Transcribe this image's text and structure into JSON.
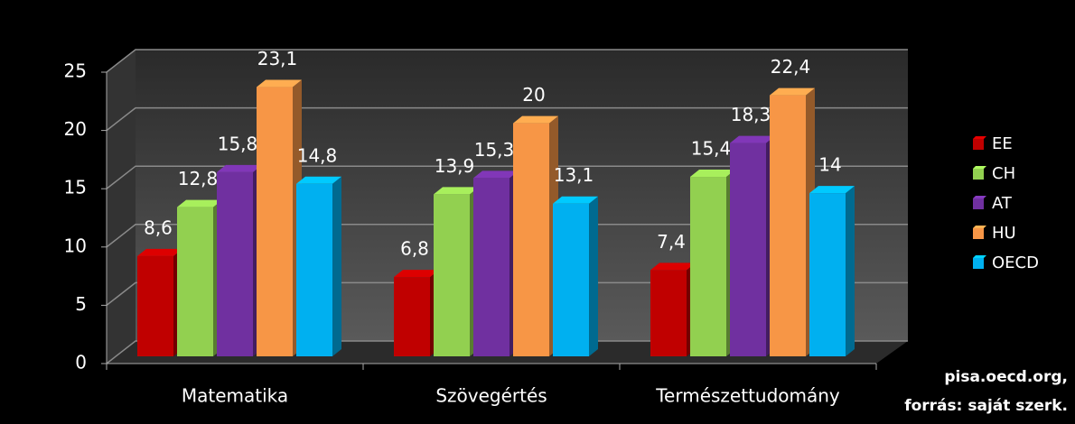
{
  "chart_data": {
    "type": "bar3d",
    "categories": [
      "Matematika",
      "Szövegértés",
      "Természettudomány"
    ],
    "series": [
      {
        "name": "EE",
        "color": "#c00000",
        "values": [
          8.6,
          6.8,
          7.4
        ],
        "value_labels": [
          "8,6",
          "6,8",
          "7,4"
        ]
      },
      {
        "name": "CH",
        "color": "#92d050",
        "values": [
          12.8,
          13.9,
          15.4
        ],
        "value_labels": [
          "12,8",
          "13,9",
          "15,4"
        ]
      },
      {
        "name": "AT",
        "color": "#7030a0",
        "values": [
          15.8,
          15.3,
          18.3
        ],
        "value_labels": [
          "15,8",
          "15,3",
          "18,3"
        ]
      },
      {
        "name": "HU",
        "color": "#f79646",
        "values": [
          23.1,
          20,
          22.4
        ],
        "value_labels": [
          "23,1",
          "20",
          "22,4"
        ]
      },
      {
        "name": "OECD",
        "color": "#00b0f0",
        "values": [
          14.8,
          13.1,
          14
        ],
        "value_labels": [
          "14,8",
          "13,1",
          "14"
        ]
      }
    ],
    "ylim": [
      0,
      25
    ],
    "yticks": [
      0,
      5,
      10,
      15,
      20,
      25
    ],
    "grid": true,
    "legend": "right",
    "annotations": [
      "pisa.oecd.org,",
      "forrás: saját szerk."
    ]
  }
}
